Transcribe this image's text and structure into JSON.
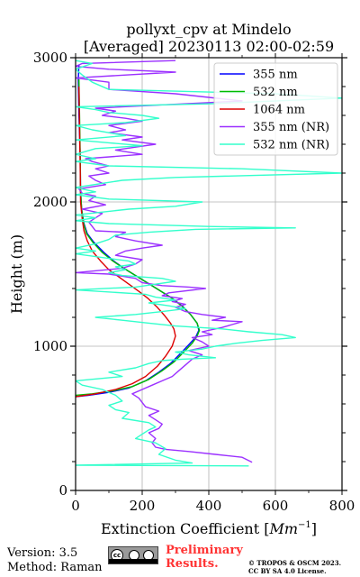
{
  "chart_data": {
    "type": "line",
    "title": [
      "pollyxt_cpv at Mindelo",
      "[Averaged] 20230113 02:00-02:59"
    ],
    "xlabel": "Extinction Coefficient [Mm⁻¹]",
    "xlabel_main": "Extinction Coefficient [",
    "xlabel_unit": "Mm",
    "xlabel_sup": "−1",
    "xlabel_close": "]",
    "ylabel": "Height (m)",
    "xlim": [
      0,
      800
    ],
    "ylim": [
      0,
      3000
    ],
    "xticks": [
      "0",
      "200",
      "400",
      "600",
      "800"
    ],
    "yticks": [
      "0",
      "1000",
      "2000",
      "3000"
    ],
    "grid": true,
    "legend_position": "top-right",
    "series": [
      {
        "name": "355 nm",
        "color": "#0000ff",
        "points": [
          [
            0,
            650
          ],
          [
            40,
            660
          ],
          [
            100,
            680
          ],
          [
            160,
            710
          ],
          [
            210,
            760
          ],
          [
            250,
            820
          ],
          [
            285,
            880
          ],
          [
            315,
            950
          ],
          [
            340,
            1010
          ],
          [
            360,
            1060
          ],
          [
            370,
            1110
          ],
          [
            365,
            1160
          ],
          [
            345,
            1220
          ],
          [
            320,
            1280
          ],
          [
            285,
            1340
          ],
          [
            250,
            1390
          ],
          [
            215,
            1440
          ],
          [
            180,
            1490
          ],
          [
            145,
            1540
          ],
          [
            115,
            1590
          ],
          [
            85,
            1650
          ],
          [
            55,
            1720
          ],
          [
            35,
            1780
          ],
          [
            25,
            1850
          ],
          [
            18,
            1950
          ],
          [
            15,
            2080
          ],
          [
            14,
            2300
          ],
          [
            10,
            2600
          ],
          [
            8,
            2850
          ],
          [
            10,
            2950
          ]
        ]
      },
      {
        "name": "532 nm",
        "color": "#00bb00",
        "points": [
          [
            0,
            660
          ],
          [
            50,
            670
          ],
          [
            110,
            690
          ],
          [
            170,
            720
          ],
          [
            220,
            770
          ],
          [
            260,
            830
          ],
          [
            295,
            890
          ],
          [
            325,
            960
          ],
          [
            350,
            1020
          ],
          [
            365,
            1070
          ],
          [
            372,
            1110
          ],
          [
            365,
            1160
          ],
          [
            345,
            1220
          ],
          [
            318,
            1280
          ],
          [
            285,
            1340
          ],
          [
            250,
            1390
          ],
          [
            215,
            1440
          ],
          [
            180,
            1490
          ],
          [
            145,
            1540
          ],
          [
            112,
            1590
          ],
          [
            80,
            1650
          ],
          [
            52,
            1720
          ],
          [
            33,
            1780
          ],
          [
            24,
            1850
          ],
          [
            18,
            1950
          ],
          [
            15,
            2080
          ],
          [
            14,
            2300
          ],
          [
            12,
            2600
          ],
          [
            10,
            2850
          ]
        ]
      },
      {
        "name": "1064 nm",
        "color": "#dd0000",
        "points": [
          [
            0,
            650
          ],
          [
            60,
            670
          ],
          [
            120,
            700
          ],
          [
            170,
            740
          ],
          [
            210,
            790
          ],
          [
            245,
            860
          ],
          [
            270,
            930
          ],
          [
            290,
            1000
          ],
          [
            300,
            1070
          ],
          [
            295,
            1120
          ],
          [
            285,
            1160
          ],
          [
            268,
            1210
          ],
          [
            245,
            1270
          ],
          [
            218,
            1330
          ],
          [
            190,
            1380
          ],
          [
            160,
            1430
          ],
          [
            130,
            1480
          ],
          [
            100,
            1530
          ],
          [
            75,
            1590
          ],
          [
            50,
            1660
          ],
          [
            35,
            1730
          ],
          [
            25,
            1800
          ],
          [
            20,
            1880
          ],
          [
            15,
            2000
          ],
          [
            14,
            2200
          ],
          [
            12,
            2500
          ],
          [
            10,
            2800
          ]
        ]
      },
      {
        "name": "355 nm (NR)",
        "color": "#9b30ff",
        "points": [
          [
            530,
            195
          ],
          [
            500,
            230
          ],
          [
            420,
            250
          ],
          [
            340,
            270
          ],
          [
            270,
            285
          ],
          [
            240,
            300
          ],
          [
            230,
            330
          ],
          [
            240,
            360
          ],
          [
            220,
            400
          ],
          [
            250,
            430
          ],
          [
            260,
            460
          ],
          [
            240,
            490
          ],
          [
            220,
            520
          ],
          [
            250,
            550
          ],
          [
            210,
            580
          ],
          [
            200,
            610
          ],
          [
            190,
            640
          ],
          [
            170,
            670
          ],
          [
            200,
            700
          ],
          [
            230,
            730
          ],
          [
            260,
            760
          ],
          [
            290,
            790
          ],
          [
            310,
            830
          ],
          [
            330,
            870
          ],
          [
            350,
            910
          ],
          [
            380,
            940
          ],
          [
            340,
            970
          ],
          [
            400,
            1000
          ],
          [
            380,
            1030
          ],
          [
            350,
            1060
          ],
          [
            410,
            1080
          ],
          [
            380,
            1100
          ],
          [
            440,
            1130
          ],
          [
            470,
            1150
          ],
          [
            500,
            1170
          ],
          [
            410,
            1180
          ],
          [
            450,
            1200
          ],
          [
            380,
            1220
          ],
          [
            330,
            1240
          ],
          [
            300,
            1270
          ],
          [
            330,
            1290
          ],
          [
            290,
            1310
          ],
          [
            320,
            1330
          ],
          [
            260,
            1350
          ],
          [
            280,
            1370
          ],
          [
            390,
            1400
          ],
          [
            340,
            1410
          ],
          [
            260,
            1420
          ],
          [
            200,
            1440
          ],
          [
            180,
            1470
          ],
          [
            100,
            1500
          ],
          [
            0,
            1510
          ],
          [
            140,
            1540
          ],
          [
            180,
            1570
          ],
          [
            200,
            1600
          ],
          [
            120,
            1630
          ],
          [
            150,
            1660
          ],
          [
            200,
            1680
          ],
          [
            260,
            1700
          ],
          [
            180,
            1730
          ],
          [
            120,
            1760
          ],
          [
            150,
            1790
          ],
          [
            60,
            1800
          ],
          [
            40,
            1860
          ],
          [
            80,
            1920
          ],
          [
            20,
            1950
          ],
          [
            90,
            1980
          ],
          [
            40,
            2010
          ],
          [
            60,
            2040
          ],
          [
            20,
            2060
          ],
          [
            10,
            2090
          ],
          [
            90,
            2120
          ],
          [
            60,
            2150
          ],
          [
            40,
            2180
          ],
          [
            100,
            2200
          ],
          [
            60,
            2230
          ],
          [
            100,
            2250
          ],
          [
            50,
            2280
          ],
          [
            30,
            2300
          ],
          [
            200,
            2330
          ],
          [
            120,
            2360
          ],
          [
            180,
            2380
          ],
          [
            240,
            2400
          ],
          [
            140,
            2430
          ],
          [
            200,
            2450
          ],
          [
            100,
            2480
          ],
          [
            150,
            2500
          ],
          [
            100,
            2530
          ],
          [
            200,
            2560
          ],
          [
            150,
            2580
          ],
          [
            80,
            2600
          ],
          [
            120,
            2630
          ],
          [
            60,
            2650
          ],
          [
            500,
            2700
          ],
          [
            300,
            2750
          ],
          [
            100,
            2780
          ],
          [
            100,
            2830
          ],
          [
            0,
            2860
          ],
          [
            300,
            2900
          ],
          [
            100,
            2920
          ],
          [
            0,
            2940
          ],
          [
            20,
            2960
          ],
          [
            300,
            2980
          ]
        ]
      },
      {
        "name": "532 nm (NR)",
        "color": "#33ffcc",
        "points": [
          [
            520,
            170
          ],
          [
            0,
            175
          ],
          [
            350,
            190
          ],
          [
            300,
            210
          ],
          [
            250,
            250
          ],
          [
            270,
            290
          ],
          [
            240,
            330
          ],
          [
            180,
            360
          ],
          [
            200,
            390
          ],
          [
            220,
            420
          ],
          [
            240,
            440
          ],
          [
            220,
            470
          ],
          [
            140,
            500
          ],
          [
            160,
            540
          ],
          [
            120,
            560
          ],
          [
            100,
            590
          ],
          [
            140,
            620
          ],
          [
            120,
            660
          ],
          [
            80,
            700
          ],
          [
            20,
            730
          ],
          [
            0,
            760
          ],
          [
            140,
            790
          ],
          [
            100,
            820
          ],
          [
            180,
            850
          ],
          [
            220,
            880
          ],
          [
            260,
            900
          ],
          [
            320,
            910
          ],
          [
            420,
            920
          ],
          [
            340,
            940
          ],
          [
            300,
            960
          ],
          [
            380,
            980
          ],
          [
            420,
            1000
          ],
          [
            480,
            1020
          ],
          [
            560,
            1040
          ],
          [
            660,
            1060
          ],
          [
            620,
            1080
          ],
          [
            520,
            1100
          ],
          [
            440,
            1120
          ],
          [
            300,
            1140
          ],
          [
            220,
            1160
          ],
          [
            140,
            1180
          ],
          [
            60,
            1200
          ],
          [
            180,
            1220
          ],
          [
            260,
            1240
          ],
          [
            330,
            1260
          ],
          [
            280,
            1280
          ],
          [
            220,
            1300
          ],
          [
            300,
            1320
          ],
          [
            240,
            1340
          ],
          [
            210,
            1360
          ],
          [
            0,
            1390
          ],
          [
            180,
            1410
          ],
          [
            240,
            1430
          ],
          [
            300,
            1450
          ],
          [
            260,
            1470
          ],
          [
            140,
            1490
          ],
          [
            100,
            1510
          ],
          [
            150,
            1530
          ],
          [
            120,
            1550
          ],
          [
            180,
            1570
          ],
          [
            160,
            1590
          ],
          [
            0,
            1640
          ],
          [
            60,
            1660
          ],
          [
            0,
            1680
          ],
          [
            60,
            1710
          ],
          [
            100,
            1740
          ],
          [
            120,
            1770
          ],
          [
            220,
            1790
          ],
          [
            360,
            1810
          ],
          [
            660,
            1820
          ],
          [
            400,
            1830
          ],
          [
            100,
            1850
          ],
          [
            0,
            1870
          ],
          [
            60,
            1890
          ],
          [
            0,
            1910
          ],
          [
            160,
            1950
          ],
          [
            300,
            1970
          ],
          [
            380,
            2000
          ],
          [
            100,
            2020
          ],
          [
            0,
            2050
          ],
          [
            60,
            2070
          ],
          [
            0,
            2100
          ],
          [
            140,
            2150
          ],
          [
            300,
            2170
          ],
          [
            800,
            2200
          ],
          [
            500,
            2230
          ],
          [
            100,
            2250
          ],
          [
            0,
            2280
          ],
          [
            60,
            2300
          ],
          [
            0,
            2330
          ],
          [
            60,
            2370
          ],
          [
            200,
            2390
          ],
          [
            100,
            2410
          ],
          [
            0,
            2430
          ],
          [
            150,
            2460
          ],
          [
            100,
            2480
          ],
          [
            50,
            2500
          ],
          [
            0,
            2530
          ],
          [
            150,
            2550
          ],
          [
            250,
            2580
          ],
          [
            200,
            2600
          ],
          [
            100,
            2620
          ],
          [
            60,
            2640
          ],
          [
            0,
            2660
          ],
          [
            400,
            2680
          ],
          [
            800,
            2720
          ],
          [
            600,
            2750
          ],
          [
            100,
            2780
          ],
          [
            50,
            2830
          ],
          [
            20,
            2880
          ],
          [
            0,
            2920
          ],
          [
            50,
            2960
          ],
          [
            0,
            2980
          ]
        ]
      }
    ]
  },
  "footer": {
    "version": "Version: 3.5",
    "method": "Method: Raman",
    "preliminary_line1": "Preliminary",
    "preliminary_line2": "Results.",
    "copyright_line1": "© TROPOS & OSCM 2023.",
    "copyright_line2": "CC BY SA 4.0 License."
  },
  "license_badge": {
    "cc": "cc",
    "icon": "cc-by-sa-icon"
  }
}
